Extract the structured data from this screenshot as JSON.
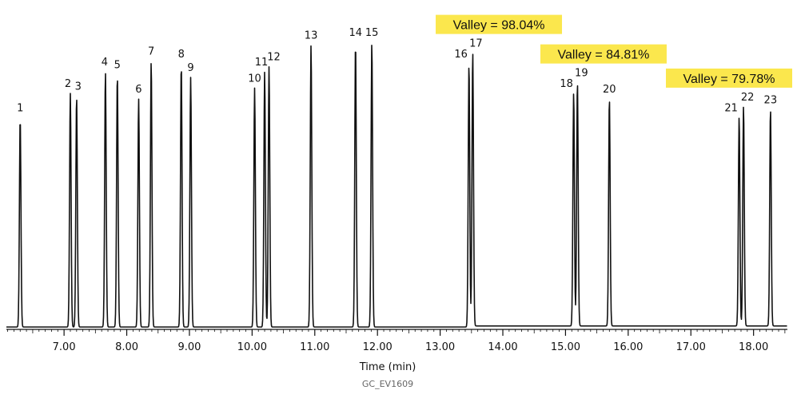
{
  "chart_data": {
    "type": "line",
    "title": "",
    "xlabel": "Time (min)",
    "ylabel": "",
    "xlim": [
      6.08,
      18.54
    ],
    "ylim": [
      0,
      100
    ],
    "x_ticks": [
      "7.00",
      "8.00",
      "9.00",
      "10.00",
      "11.00",
      "12.00",
      "13.00",
      "14.00",
      "15.00",
      "16.00",
      "17.00",
      "18.00"
    ],
    "grid": false,
    "legend": "none",
    "line_color": "#111111",
    "peaks": [
      {
        "label": "1",
        "rt": 6.3,
        "height": 78
      },
      {
        "label": "2",
        "rt": 7.1,
        "height": 87
      },
      {
        "label": "3",
        "rt": 7.2,
        "height": 86
      },
      {
        "label": "4",
        "rt": 7.66,
        "height": 95
      },
      {
        "label": "5",
        "rt": 7.85,
        "height": 94
      },
      {
        "label": "6",
        "rt": 8.19,
        "height": 85
      },
      {
        "label": "7",
        "rt": 8.39,
        "height": 99
      },
      {
        "label": "8",
        "rt": 8.87,
        "height": 98
      },
      {
        "label": "9",
        "rt": 9.02,
        "height": 93
      },
      {
        "label": "10",
        "rt": 10.04,
        "height": 89
      },
      {
        "label": "11",
        "rt": 10.2,
        "height": 95
      },
      {
        "label": "12",
        "rt": 10.27,
        "height": 97
      },
      {
        "label": "13",
        "rt": 10.94,
        "height": 105
      },
      {
        "label": "14",
        "rt": 11.65,
        "height": 106
      },
      {
        "label": "15",
        "rt": 11.91,
        "height": 106
      },
      {
        "label": "16",
        "rt": 13.46,
        "height": 98
      },
      {
        "label": "17",
        "rt": 13.52,
        "height": 102
      },
      {
        "label": "18",
        "rt": 15.13,
        "height": 87
      },
      {
        "label": "19",
        "rt": 15.19,
        "height": 91
      },
      {
        "label": "20",
        "rt": 15.7,
        "height": 85
      },
      {
        "label": "21",
        "rt": 17.77,
        "height": 78
      },
      {
        "label": "22",
        "rt": 17.84,
        "height": 82
      },
      {
        "label": "23",
        "rt": 18.27,
        "height": 81
      }
    ],
    "valley_annotations": [
      {
        "text": "Valley = 98.04%",
        "peaks": [
          "16",
          "17"
        ]
      },
      {
        "text": "Valley = 84.81%",
        "peaks": [
          "18",
          "19"
        ]
      },
      {
        "text": "Valley = 79.78%",
        "peaks": [
          "21",
          "22"
        ]
      }
    ],
    "highlight_color": "#fbe74d"
  },
  "footer": {
    "code": "GC_EV1609"
  }
}
